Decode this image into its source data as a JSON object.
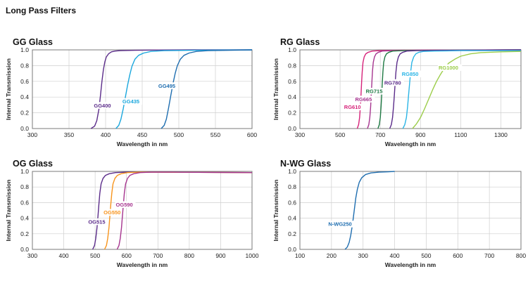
{
  "page_title": "Long Pass Filters",
  "colors": {
    "frame": "#7a7a7a",
    "grid": "#cfcfcf",
    "text": "#222222"
  },
  "chart_data": [
    {
      "type": "line",
      "title": "GG Glass",
      "xlabel": "Wavelength in nm",
      "ylabel": "Internal Transmission",
      "xlim": [
        300,
        600
      ],
      "ylim": [
        0,
        1.0
      ],
      "xticks": [
        300,
        350,
        400,
        450,
        500,
        550,
        600
      ],
      "yticks": [
        "0.0",
        "0.2",
        "0.4",
        "0.6",
        "0.8",
        "1.0"
      ],
      "grid": true,
      "series": [
        {
          "name": "GG400",
          "color": "#5b2c8a",
          "x": [
            380,
            385,
            388,
            391,
            393,
            395,
            397,
            399,
            401,
            404,
            408,
            413,
            420,
            440,
            470,
            520,
            600
          ],
          "y": [
            0.0,
            0.03,
            0.1,
            0.25,
            0.42,
            0.6,
            0.75,
            0.85,
            0.91,
            0.95,
            0.975,
            0.985,
            0.99,
            0.995,
            0.998,
            1.0,
            1.0
          ],
          "label_at": [
            384,
            0.27
          ]
        },
        {
          "name": "GG435",
          "color": "#1aa7dd",
          "x": [
            414,
            418,
            421,
            424,
            427,
            430,
            433,
            436,
            440,
            445,
            452,
            462,
            480,
            520,
            600
          ],
          "y": [
            0.0,
            0.04,
            0.12,
            0.25,
            0.4,
            0.55,
            0.68,
            0.79,
            0.88,
            0.93,
            0.96,
            0.98,
            0.99,
            0.995,
            1.0
          ],
          "label_at": [
            423,
            0.32
          ]
        },
        {
          "name": "GG495",
          "color": "#1f6eb0",
          "x": [
            476,
            480,
            483,
            486,
            489,
            492,
            495,
            498,
            502,
            507,
            514,
            524,
            540,
            570,
            600
          ],
          "y": [
            0.0,
            0.04,
            0.12,
            0.26,
            0.42,
            0.57,
            0.7,
            0.8,
            0.88,
            0.93,
            0.96,
            0.98,
            0.99,
            0.995,
            1.0
          ],
          "label_at": [
            472,
            0.52
          ]
        }
      ]
    },
    {
      "type": "line",
      "title": "RG Glass",
      "xlabel": "Wavelength in nm",
      "ylabel": "Internal Transmission",
      "xlim": [
        300,
        1400
      ],
      "ylim": [
        0,
        1.0
      ],
      "xticks": [
        300,
        500,
        700,
        900,
        1100,
        1300
      ],
      "yticks": [
        "0.0",
        "0.2",
        "0.4",
        "0.6",
        "0.8",
        "1.0"
      ],
      "grid": true,
      "series": [
        {
          "name": "RG610",
          "color": "#d6237a",
          "x": [
            585,
            592,
            597,
            601,
            604,
            607,
            610,
            614,
            620,
            628,
            640,
            660,
            700,
            800,
            1000,
            1400
          ],
          "y": [
            0.0,
            0.05,
            0.14,
            0.28,
            0.43,
            0.58,
            0.72,
            0.84,
            0.91,
            0.95,
            0.97,
            0.985,
            0.99,
            0.995,
            0.998,
            1.0
          ],
          "label_at": [
            520,
            0.25
          ]
        },
        {
          "name": "RG665",
          "color": "#a6358f",
          "x": [
            636,
            643,
            648,
            652,
            655,
            658,
            661,
            665,
            671,
            679,
            691,
            710,
            760,
            900,
            1400
          ],
          "y": [
            0.0,
            0.05,
            0.14,
            0.28,
            0.43,
            0.58,
            0.72,
            0.84,
            0.91,
            0.95,
            0.97,
            0.985,
            0.99,
            0.995,
            1.0
          ],
          "label_at": [
            575,
            0.35
          ]
        },
        {
          "name": "RG715",
          "color": "#1f7a44",
          "x": [
            688,
            695,
            700,
            704,
            707,
            710,
            713,
            717,
            723,
            731,
            743,
            762,
            810,
            950,
            1400
          ],
          "y": [
            0.0,
            0.05,
            0.14,
            0.28,
            0.43,
            0.58,
            0.72,
            0.84,
            0.91,
            0.95,
            0.97,
            0.985,
            0.99,
            0.995,
            1.0
          ],
          "label_at": [
            628,
            0.45
          ]
        },
        {
          "name": "RG780",
          "color": "#5b2c8a",
          "x": [
            747,
            755,
            761,
            766,
            770,
            774,
            778,
            783,
            790,
            799,
            812,
            832,
            880,
            1000,
            1400
          ],
          "y": [
            0.0,
            0.05,
            0.14,
            0.28,
            0.43,
            0.58,
            0.72,
            0.84,
            0.91,
            0.95,
            0.97,
            0.985,
            0.99,
            0.995,
            1.0
          ],
          "label_at": [
            720,
            0.56
          ]
        },
        {
          "name": "RG850",
          "color": "#2bb5e6",
          "x": [
            812,
            822,
            830,
            836,
            841,
            846,
            851,
            857,
            866,
            877,
            892,
            915,
            970,
            1100,
            1400
          ],
          "y": [
            0.0,
            0.05,
            0.14,
            0.28,
            0.43,
            0.58,
            0.72,
            0.84,
            0.91,
            0.95,
            0.97,
            0.98,
            0.985,
            0.99,
            0.99
          ],
          "label_at": [
            807,
            0.67
          ]
        },
        {
          "name": "RG1000",
          "color": "#9ccd4a",
          "x": [
            860,
            880,
            900,
            920,
            940,
            960,
            980,
            1000,
            1020,
            1040,
            1070,
            1100,
            1150,
            1200,
            1300,
            1400
          ],
          "y": [
            0.0,
            0.06,
            0.14,
            0.25,
            0.37,
            0.49,
            0.6,
            0.69,
            0.77,
            0.83,
            0.88,
            0.92,
            0.95,
            0.965,
            0.975,
            0.98
          ],
          "label_at": [
            990,
            0.75
          ]
        }
      ]
    },
    {
      "type": "line",
      "title": "OG Glass",
      "xlabel": "Wavelength in nm",
      "ylabel": "Internal Transmission",
      "xlim": [
        300,
        1000
      ],
      "ylim": [
        0,
        1.0
      ],
      "xticks": [
        300,
        400,
        500,
        600,
        700,
        800,
        900,
        1000
      ],
      "yticks": [
        "0.0",
        "0.2",
        "0.4",
        "0.6",
        "0.8",
        "1.0"
      ],
      "grid": true,
      "series": [
        {
          "name": "OG515",
          "color": "#5b2c8a",
          "x": [
            492,
            498,
            502,
            506,
            509,
            512,
            515,
            519,
            525,
            533,
            545,
            565,
            600,
            700,
            1000
          ],
          "y": [
            0.0,
            0.05,
            0.14,
            0.28,
            0.43,
            0.58,
            0.72,
            0.84,
            0.91,
            0.95,
            0.97,
            0.985,
            0.99,
            0.99,
            0.985
          ],
          "label_at": [
            478,
            0.33
          ]
        },
        {
          "name": "OG550",
          "color": "#f7941d",
          "x": [
            530,
            536,
            540,
            544,
            547,
            550,
            553,
            557,
            563,
            571,
            583,
            603,
            640,
            700,
            1000
          ],
          "y": [
            0.0,
            0.05,
            0.14,
            0.28,
            0.43,
            0.58,
            0.72,
            0.84,
            0.91,
            0.95,
            0.97,
            0.985,
            0.99,
            0.99,
            0.985
          ],
          "label_at": [
            527,
            0.45
          ]
        },
        {
          "name": "OG590",
          "color": "#a6358f",
          "x": [
            570,
            576,
            580,
            584,
            587,
            590,
            593,
            597,
            603,
            611,
            623,
            643,
            680,
            750,
            1000
          ],
          "y": [
            0.0,
            0.05,
            0.14,
            0.28,
            0.43,
            0.58,
            0.72,
            0.84,
            0.91,
            0.95,
            0.97,
            0.985,
            0.99,
            0.99,
            0.985
          ],
          "label_at": [
            566,
            0.55
          ]
        }
      ]
    },
    {
      "type": "line",
      "title": "N-WG Glass",
      "xlabel": "Wavelength in nm",
      "ylabel": "Internal Transmission",
      "xlim": [
        100,
        800
      ],
      "ylim": [
        0,
        1.0
      ],
      "xticks": [
        100,
        200,
        300,
        400,
        500,
        600,
        700,
        800
      ],
      "yticks": [
        "0.0",
        "0.2",
        "0.4",
        "0.6",
        "0.8",
        "1.0"
      ],
      "grid": true,
      "series": [
        {
          "name": "N-WG250",
          "color": "#1f6eb0",
          "x": [
            243,
            250,
            256,
            261,
            265,
            269,
            273,
            277,
            282,
            288,
            296,
            308,
            325,
            350,
            380,
            400
          ],
          "y": [
            0.0,
            0.03,
            0.09,
            0.18,
            0.28,
            0.4,
            0.53,
            0.66,
            0.77,
            0.86,
            0.92,
            0.96,
            0.98,
            0.99,
            0.995,
            1.0
          ],
          "label_at": [
            190,
            0.3
          ]
        }
      ]
    }
  ]
}
